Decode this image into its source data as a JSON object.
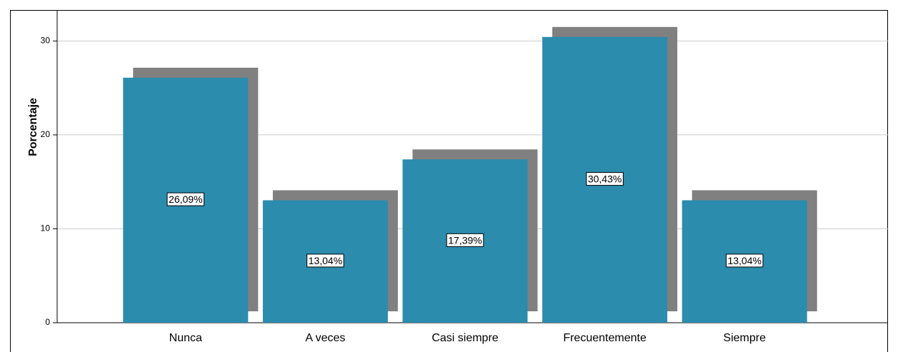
{
  "chart_data": {
    "type": "bar",
    "categories": [
      "Nunca",
      "A veces",
      "Casi siempre",
      "Frecuentemente",
      "Siempre"
    ],
    "values": [
      26.09,
      13.04,
      17.39,
      30.43,
      13.04
    ],
    "value_labels": [
      "26,09%",
      "13,04%",
      "17,39%",
      "30,43%",
      "13,04%"
    ],
    "color": "#2b8cae",
    "shadow_color": "#808080",
    "y_label": "Porcentaje",
    "ylim": [
      0,
      33.3
    ],
    "yticks": [
      0,
      10,
      20,
      30
    ],
    "grid": true
  }
}
